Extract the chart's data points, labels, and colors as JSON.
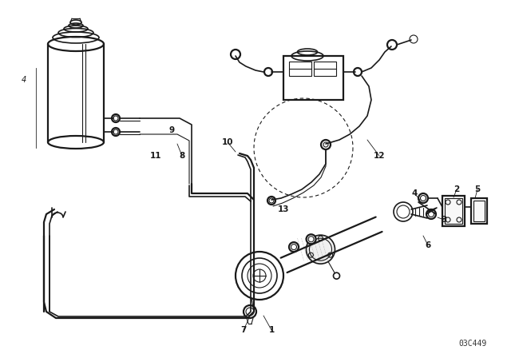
{
  "background_color": "#ffffff",
  "line_color": "#1a1a1a",
  "watermark": "03C449",
  "label_fontsize": 7.5,
  "label_fontweight": "bold",
  "figsize": [
    6.4,
    4.48
  ],
  "dpi": 100
}
